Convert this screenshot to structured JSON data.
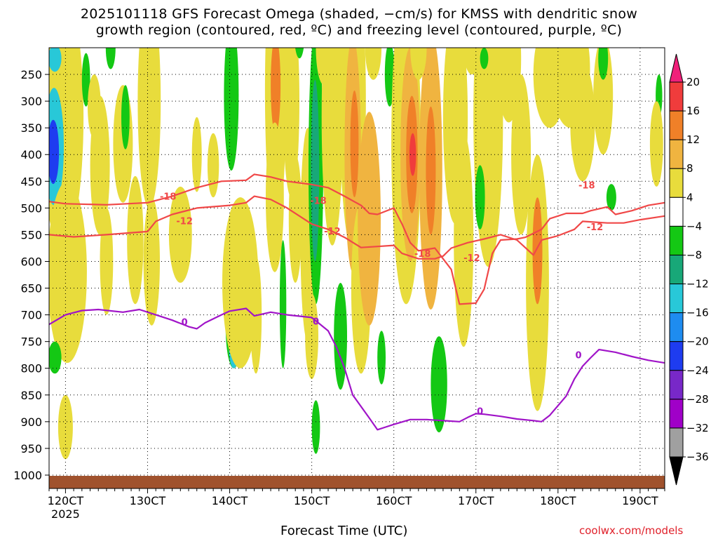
{
  "chart_data": {
    "type": "heatmap",
    "title_line1": "2025101118 GFS Forecast Omega (shaded, −cm/s) for KMSS with dendritic snow",
    "title_line2": "growth region (contoured, red, ºC) and freezing level (contoured, purple, ºC)",
    "xlabel": "Forecast Time (UTC)",
    "ylabel": "",
    "credit": "coolwx.com/models",
    "x_range_hours": [
      118,
      193
    ],
    "y_range_hpa": [
      200,
      1025
    ],
    "x_ticks": [
      {
        "hour": 120,
        "label": "120CT"
      },
      {
        "hour": 130,
        "label": "130CT"
      },
      {
        "hour": 140,
        "label": "140CT"
      },
      {
        "hour": 150,
        "label": "150CT"
      },
      {
        "hour": 160,
        "label": "160CT"
      },
      {
        "hour": 170,
        "label": "170CT"
      },
      {
        "hour": 180,
        "label": "180CT"
      },
      {
        "hour": 190,
        "label": "190CT"
      }
    ],
    "x_year_label": "2025",
    "y_ticks": [
      250,
      300,
      350,
      400,
      450,
      500,
      550,
      600,
      650,
      700,
      750,
      800,
      850,
      900,
      950,
      1000
    ],
    "colorbar": {
      "labels": [
        "20",
        "16",
        "12",
        "8",
        "4",
        "−4",
        "−8",
        "−12",
        "−16",
        "−20",
        "−24",
        "−28",
        "−32",
        "−36"
      ],
      "colors": [
        "#f0207a",
        "#f03c3c",
        "#f08028",
        "#f0b440",
        "#e8dc3c",
        "#ffffff",
        "#14c814",
        "#18a878",
        "#28c8d8",
        "#1e8cf0",
        "#1e3cf0",
        "#7828c8",
        "#a000c8",
        "#a0a0a0",
        "#000000"
      ]
    },
    "contour_colors": {
      "dgz": "#f04848",
      "freezing": "#a014c8",
      "ground": "#a0522d"
    },
    "dgz_minus18": [
      [
        118,
        488
      ],
      [
        120,
        492
      ],
      [
        125,
        494
      ],
      [
        130,
        490
      ],
      [
        133,
        478
      ],
      [
        136,
        462
      ],
      [
        139,
        450
      ],
      [
        142,
        448
      ],
      [
        143,
        437
      ],
      [
        145,
        442
      ],
      [
        147,
        450
      ],
      [
        150,
        456
      ],
      [
        152,
        462
      ],
      [
        154,
        478
      ],
      [
        156,
        495
      ],
      [
        157,
        510
      ],
      [
        158,
        512
      ],
      [
        160,
        500
      ],
      [
        161,
        530
      ],
      [
        162,
        565
      ],
      [
        163,
        580
      ],
      [
        165,
        575
      ],
      [
        166,
        595
      ],
      [
        167,
        615
      ],
      [
        168,
        680
      ],
      [
        170,
        678
      ],
      [
        171,
        652
      ],
      [
        172,
        585
      ],
      [
        173,
        560
      ],
      [
        175,
        558
      ],
      [
        176,
        555
      ],
      [
        178,
        540
      ],
      [
        179,
        520
      ],
      [
        181,
        510
      ],
      [
        183,
        510
      ],
      [
        184,
        505
      ],
      [
        186,
        498
      ],
      [
        187,
        512
      ],
      [
        189,
        505
      ],
      [
        191,
        495
      ],
      [
        193,
        490
      ]
    ],
    "dgz_minus12": [
      [
        118,
        550
      ],
      [
        121,
        554
      ],
      [
        125,
        550
      ],
      [
        130,
        544
      ],
      [
        131,
        525
      ],
      [
        133,
        512
      ],
      [
        136,
        500
      ],
      [
        140,
        495
      ],
      [
        142,
        490
      ],
      [
        143,
        478
      ],
      [
        145,
        484
      ],
      [
        147,
        500
      ],
      [
        150,
        530
      ],
      [
        152,
        540
      ],
      [
        154,
        555
      ],
      [
        156,
        574
      ],
      [
        158,
        572
      ],
      [
        160,
        570
      ],
      [
        161,
        585
      ],
      [
        163,
        595
      ],
      [
        165,
        595
      ],
      [
        166,
        590
      ],
      [
        167,
        575
      ],
      [
        169,
        565
      ],
      [
        171,
        558
      ],
      [
        173,
        550
      ],
      [
        175,
        560
      ],
      [
        176,
        574
      ],
      [
        177,
        588
      ],
      [
        178,
        560
      ],
      [
        180,
        552
      ],
      [
        182,
        540
      ],
      [
        183,
        525
      ],
      [
        186,
        528
      ],
      [
        188,
        528
      ],
      [
        190,
        522
      ],
      [
        193,
        515
      ]
    ],
    "freezing_0c": [
      [
        118,
        718
      ],
      [
        120,
        700
      ],
      [
        122,
        692
      ],
      [
        124,
        690
      ],
      [
        127,
        695
      ],
      [
        129,
        690
      ],
      [
        131,
        700
      ],
      [
        133,
        710
      ],
      [
        135,
        722
      ],
      [
        136,
        726
      ],
      [
        137,
        715
      ],
      [
        139,
        700
      ],
      [
        140,
        693
      ],
      [
        142,
        688
      ],
      [
        143,
        702
      ],
      [
        145,
        695
      ],
      [
        147,
        700
      ],
      [
        150,
        705
      ],
      [
        152,
        730
      ],
      [
        153,
        760
      ],
      [
        154,
        800
      ],
      [
        155,
        850
      ],
      [
        157,
        893
      ],
      [
        158,
        915
      ],
      [
        159,
        910
      ],
      [
        160,
        905
      ],
      [
        162,
        896
      ],
      [
        164,
        896
      ],
      [
        166,
        898
      ],
      [
        168,
        900
      ],
      [
        169,
        892
      ],
      [
        170,
        885
      ],
      [
        171,
        886
      ],
      [
        173,
        890
      ],
      [
        175,
        895
      ],
      [
        177,
        898
      ],
      [
        178,
        900
      ],
      [
        179,
        888
      ],
      [
        180,
        870
      ],
      [
        181,
        852
      ],
      [
        182,
        820
      ],
      [
        183,
        796
      ],
      [
        184,
        780
      ],
      [
        185,
        765
      ],
      [
        187,
        770
      ],
      [
        189,
        778
      ],
      [
        191,
        785
      ],
      [
        193,
        790
      ]
    ],
    "contour_labels": [
      {
        "text": "-18",
        "hour": 132.5,
        "hpa": 478
      },
      {
        "text": "-18",
        "hour": 150.8,
        "hpa": 486
      },
      {
        "text": "-18",
        "hour": 163.5,
        "hpa": 585
      },
      {
        "text": "-18",
        "hour": 183.5,
        "hpa": 457
      },
      {
        "text": "-12",
        "hour": 134.5,
        "hpa": 524
      },
      {
        "text": "-12",
        "hour": 152.5,
        "hpa": 543
      },
      {
        "text": "-12",
        "hour": 169.5,
        "hpa": 593
      },
      {
        "text": "-12",
        "hour": 184.5,
        "hpa": 535
      },
      {
        "text": "0",
        "hour": 134.5,
        "hpa": 713
      },
      {
        "text": "0",
        "hour": 150.5,
        "hpa": 712
      },
      {
        "text": "0",
        "hour": 170.5,
        "hpa": 880
      },
      {
        "text": "0",
        "hour": 182.5,
        "hpa": 775
      }
    ],
    "omega_blobs": [
      {
        "hour": 119.3,
        "hpa": 280,
        "dh": 1.6,
        "dp": 55,
        "level": "#f03c3c"
      },
      {
        "hour": 119.5,
        "hpa": 310,
        "dh": 2.2,
        "dp": 120,
        "level": "#f08028"
      },
      {
        "hour": 119.6,
        "hpa": 330,
        "dh": 2.6,
        "dp": 240,
        "level": "#e8dc3c"
      },
      {
        "hour": 118.6,
        "hpa": 385,
        "dh": 1.2,
        "dp": 110,
        "level": "#28c8d8"
      },
      {
        "hour": 118.5,
        "hpa": 395,
        "dh": 0.7,
        "dp": 60,
        "level": "#1e3cf0"
      },
      {
        "hour": 118.7,
        "hpa": 220,
        "dh": 0.8,
        "dp": 25,
        "level": "#28c8d8"
      },
      {
        "hour": 120.0,
        "hpa": 600,
        "dh": 1.4,
        "dp": 90,
        "level": "#f03c3c"
      },
      {
        "hour": 120.2,
        "hpa": 620,
        "dh": 2.4,
        "dp": 170,
        "level": "#e8dc3c"
      },
      {
        "hour": 118.7,
        "hpa": 780,
        "dh": 0.8,
        "dp": 30,
        "level": "#14c814"
      },
      {
        "hour": 120.0,
        "hpa": 910,
        "dh": 0.9,
        "dp": 60,
        "level": "#e8dc3c"
      },
      {
        "hour": 122.5,
        "hpa": 260,
        "dh": 0.5,
        "dp": 50,
        "level": "#14c814"
      },
      {
        "hour": 123.5,
        "hpa": 310,
        "dh": 0.8,
        "dp": 60,
        "level": "#e8dc3c"
      },
      {
        "hour": 124.2,
        "hpa": 420,
        "dh": 1.2,
        "dp": 130,
        "level": "#e8dc3c"
      },
      {
        "hour": 125.0,
        "hpa": 600,
        "dh": 0.8,
        "dp": 100,
        "level": "#e8dc3c"
      },
      {
        "hour": 125.5,
        "hpa": 200,
        "dh": 0.6,
        "dp": 40,
        "level": "#14c814"
      },
      {
        "hour": 127.0,
        "hpa": 380,
        "dh": 1.2,
        "dp": 110,
        "level": "#e8dc3c"
      },
      {
        "hour": 127.3,
        "hpa": 330,
        "dh": 0.5,
        "dp": 60,
        "level": "#14c814"
      },
      {
        "hour": 128.5,
        "hpa": 560,
        "dh": 1.0,
        "dp": 120,
        "level": "#e8dc3c"
      },
      {
        "hour": 130.2,
        "hpa": 300,
        "dh": 1.4,
        "dp": 200,
        "level": "#e8dc3c"
      },
      {
        "hour": 130.5,
        "hpa": 600,
        "dh": 1.0,
        "dp": 120,
        "level": "#e8dc3c"
      },
      {
        "hour": 131.5,
        "hpa": 160,
        "dh": 0.5,
        "dp": 30,
        "level": "#14c814"
      },
      {
        "hour": 134.0,
        "hpa": 550,
        "dh": 1.4,
        "dp": 90,
        "level": "#e8dc3c"
      },
      {
        "hour": 136.0,
        "hpa": 400,
        "dh": 0.6,
        "dp": 70,
        "level": "#e8dc3c"
      },
      {
        "hour": 138.0,
        "hpa": 420,
        "dh": 0.7,
        "dp": 60,
        "level": "#e8dc3c"
      },
      {
        "hour": 140.2,
        "hpa": 290,
        "dh": 0.9,
        "dp": 140,
        "level": "#14c814"
      },
      {
        "hour": 140.5,
        "hpa": 720,
        "dh": 1.0,
        "dp": 80,
        "level": "#14c814"
      },
      {
        "hour": 140.5,
        "hpa": 760,
        "dh": 0.6,
        "dp": 40,
        "level": "#28c8d8"
      },
      {
        "hour": 141.0,
        "hpa": 650,
        "dh": 1.4,
        "dp": 60,
        "level": "#f08028"
      },
      {
        "hour": 141.3,
        "hpa": 640,
        "dh": 2.2,
        "dp": 160,
        "level": "#e8dc3c"
      },
      {
        "hour": 143.2,
        "hpa": 700,
        "dh": 0.7,
        "dp": 110,
        "level": "#e8dc3c"
      },
      {
        "hour": 145.6,
        "hpa": 280,
        "dh": 1.3,
        "dp": 260,
        "level": "#e8dc3c"
      },
      {
        "hour": 145.6,
        "hpa": 270,
        "dh": 0.6,
        "dp": 90,
        "level": "#f08028"
      },
      {
        "hour": 145.5,
        "hpa": 480,
        "dh": 1.1,
        "dp": 140,
        "level": "#e8dc3c"
      },
      {
        "hour": 146.5,
        "hpa": 680,
        "dh": 0.4,
        "dp": 120,
        "level": "#14c814"
      },
      {
        "hour": 147.5,
        "hpa": 300,
        "dh": 1.0,
        "dp": 180,
        "level": "#e8dc3c"
      },
      {
        "hour": 148.0,
        "hpa": 520,
        "dh": 0.8,
        "dp": 120,
        "level": "#e8dc3c"
      },
      {
        "hour": 148.5,
        "hpa": 180,
        "dh": 0.6,
        "dp": 40,
        "level": "#14c814"
      },
      {
        "hour": 149.5,
        "hpa": 550,
        "dh": 0.9,
        "dp": 200,
        "level": "#e8dc3c"
      },
      {
        "hour": 150.5,
        "hpa": 420,
        "dh": 0.9,
        "dp": 260,
        "level": "#14c814"
      },
      {
        "hour": 150.4,
        "hpa": 430,
        "dh": 0.5,
        "dp": 170,
        "level": "#18a878"
      },
      {
        "hour": 150.5,
        "hpa": 910,
        "dh": 0.5,
        "dp": 50,
        "level": "#14c814"
      },
      {
        "hour": 150.0,
        "hpa": 740,
        "dh": 0.8,
        "dp": 80,
        "level": "#e8dc3c"
      },
      {
        "hour": 151.5,
        "hpa": 200,
        "dh": 1.0,
        "dp": 70,
        "level": "#e8dc3c"
      },
      {
        "hour": 152.5,
        "hpa": 330,
        "dh": 1.3,
        "dp": 240,
        "level": "#e8dc3c"
      },
      {
        "hour": 153.5,
        "hpa": 740,
        "dh": 0.8,
        "dp": 100,
        "level": "#14c814"
      },
      {
        "hour": 155.0,
        "hpa": 300,
        "dh": 1.6,
        "dp": 280,
        "level": "#e8dc3c"
      },
      {
        "hour": 155.0,
        "hpa": 400,
        "dh": 1.0,
        "dp": 220,
        "level": "#f0b440"
      },
      {
        "hour": 155.2,
        "hpa": 380,
        "dh": 0.5,
        "dp": 100,
        "level": "#f08028"
      },
      {
        "hour": 156.0,
        "hpa": 650,
        "dh": 1.2,
        "dp": 160,
        "level": "#e8dc3c"
      },
      {
        "hour": 157.0,
        "hpa": 520,
        "dh": 1.4,
        "dp": 200,
        "level": "#f0b440"
      },
      {
        "hour": 157.5,
        "hpa": 200,
        "dh": 1.0,
        "dp": 60,
        "level": "#e8dc3c"
      },
      {
        "hour": 159.5,
        "hpa": 250,
        "dh": 0.6,
        "dp": 60,
        "level": "#14c814"
      },
      {
        "hour": 158.5,
        "hpa": 780,
        "dh": 0.5,
        "dp": 50,
        "level": "#14c814"
      },
      {
        "hour": 161.5,
        "hpa": 380,
        "dh": 1.8,
        "dp": 300,
        "level": "#e8dc3c"
      },
      {
        "hour": 162.0,
        "hpa": 400,
        "dh": 1.2,
        "dp": 200,
        "level": "#f0b440"
      },
      {
        "hour": 162.2,
        "hpa": 400,
        "dh": 0.7,
        "dp": 110,
        "level": "#f08028"
      },
      {
        "hour": 162.3,
        "hpa": 400,
        "dh": 0.4,
        "dp": 40,
        "level": "#f03c3c"
      },
      {
        "hour": 164.5,
        "hpa": 430,
        "dh": 1.4,
        "dp": 260,
        "level": "#f0b440"
      },
      {
        "hour": 164.5,
        "hpa": 430,
        "dh": 0.6,
        "dp": 120,
        "level": "#f08028"
      },
      {
        "hour": 163.0,
        "hpa": 200,
        "dh": 1.0,
        "dp": 60,
        "level": "#e8dc3c"
      },
      {
        "hour": 165.5,
        "hpa": 830,
        "dh": 1.0,
        "dp": 90,
        "level": "#14c814"
      },
      {
        "hour": 167.5,
        "hpa": 330,
        "dh": 1.5,
        "dp": 200,
        "level": "#e8dc3c"
      },
      {
        "hour": 168.5,
        "hpa": 560,
        "dh": 1.2,
        "dp": 200,
        "level": "#e8dc3c"
      },
      {
        "hour": 169.5,
        "hpa": 200,
        "dh": 1.0,
        "dp": 50,
        "level": "#e8dc3c"
      },
      {
        "hour": 171.5,
        "hpa": 330,
        "dh": 1.8,
        "dp": 280,
        "level": "#e8dc3c"
      },
      {
        "hour": 171.0,
        "hpa": 220,
        "dh": 0.5,
        "dp": 20,
        "level": "#14c814"
      },
      {
        "hour": 170.5,
        "hpa": 480,
        "dh": 0.6,
        "dp": 60,
        "level": "#14c814"
      },
      {
        "hour": 174.0,
        "hpa": 220,
        "dh": 1.5,
        "dp": 120,
        "level": "#e8dc3c"
      },
      {
        "hour": 175.5,
        "hpa": 400,
        "dh": 1.2,
        "dp": 150,
        "level": "#e8dc3c"
      },
      {
        "hour": 177.5,
        "hpa": 640,
        "dh": 1.4,
        "dp": 240,
        "level": "#e8dc3c"
      },
      {
        "hour": 177.5,
        "hpa": 580,
        "dh": 0.6,
        "dp": 100,
        "level": "#f08028"
      },
      {
        "hour": 179.0,
        "hpa": 250,
        "dh": 2.0,
        "dp": 100,
        "level": "#e8dc3c"
      },
      {
        "hour": 181.5,
        "hpa": 240,
        "dh": 2.4,
        "dp": 110,
        "level": "#e8dc3c"
      },
      {
        "hour": 183.0,
        "hpa": 340,
        "dh": 1.5,
        "dp": 110,
        "level": "#e8dc3c"
      },
      {
        "hour": 185.5,
        "hpa": 290,
        "dh": 1.2,
        "dp": 110,
        "level": "#e8dc3c"
      },
      {
        "hour": 185.5,
        "hpa": 220,
        "dh": 0.6,
        "dp": 40,
        "level": "#14c814"
      },
      {
        "hour": 186.5,
        "hpa": 480,
        "dh": 0.6,
        "dp": 25,
        "level": "#14c814"
      },
      {
        "hour": 192.3,
        "hpa": 290,
        "dh": 0.4,
        "dp": 40,
        "level": "#14c814"
      },
      {
        "hour": 192.3,
        "hpa": 360,
        "dh": 0.4,
        "dp": 30,
        "level": "#14c814"
      },
      {
        "hour": 192.0,
        "hpa": 380,
        "dh": 0.8,
        "dp": 80,
        "level": "#e8dc3c"
      }
    ]
  }
}
